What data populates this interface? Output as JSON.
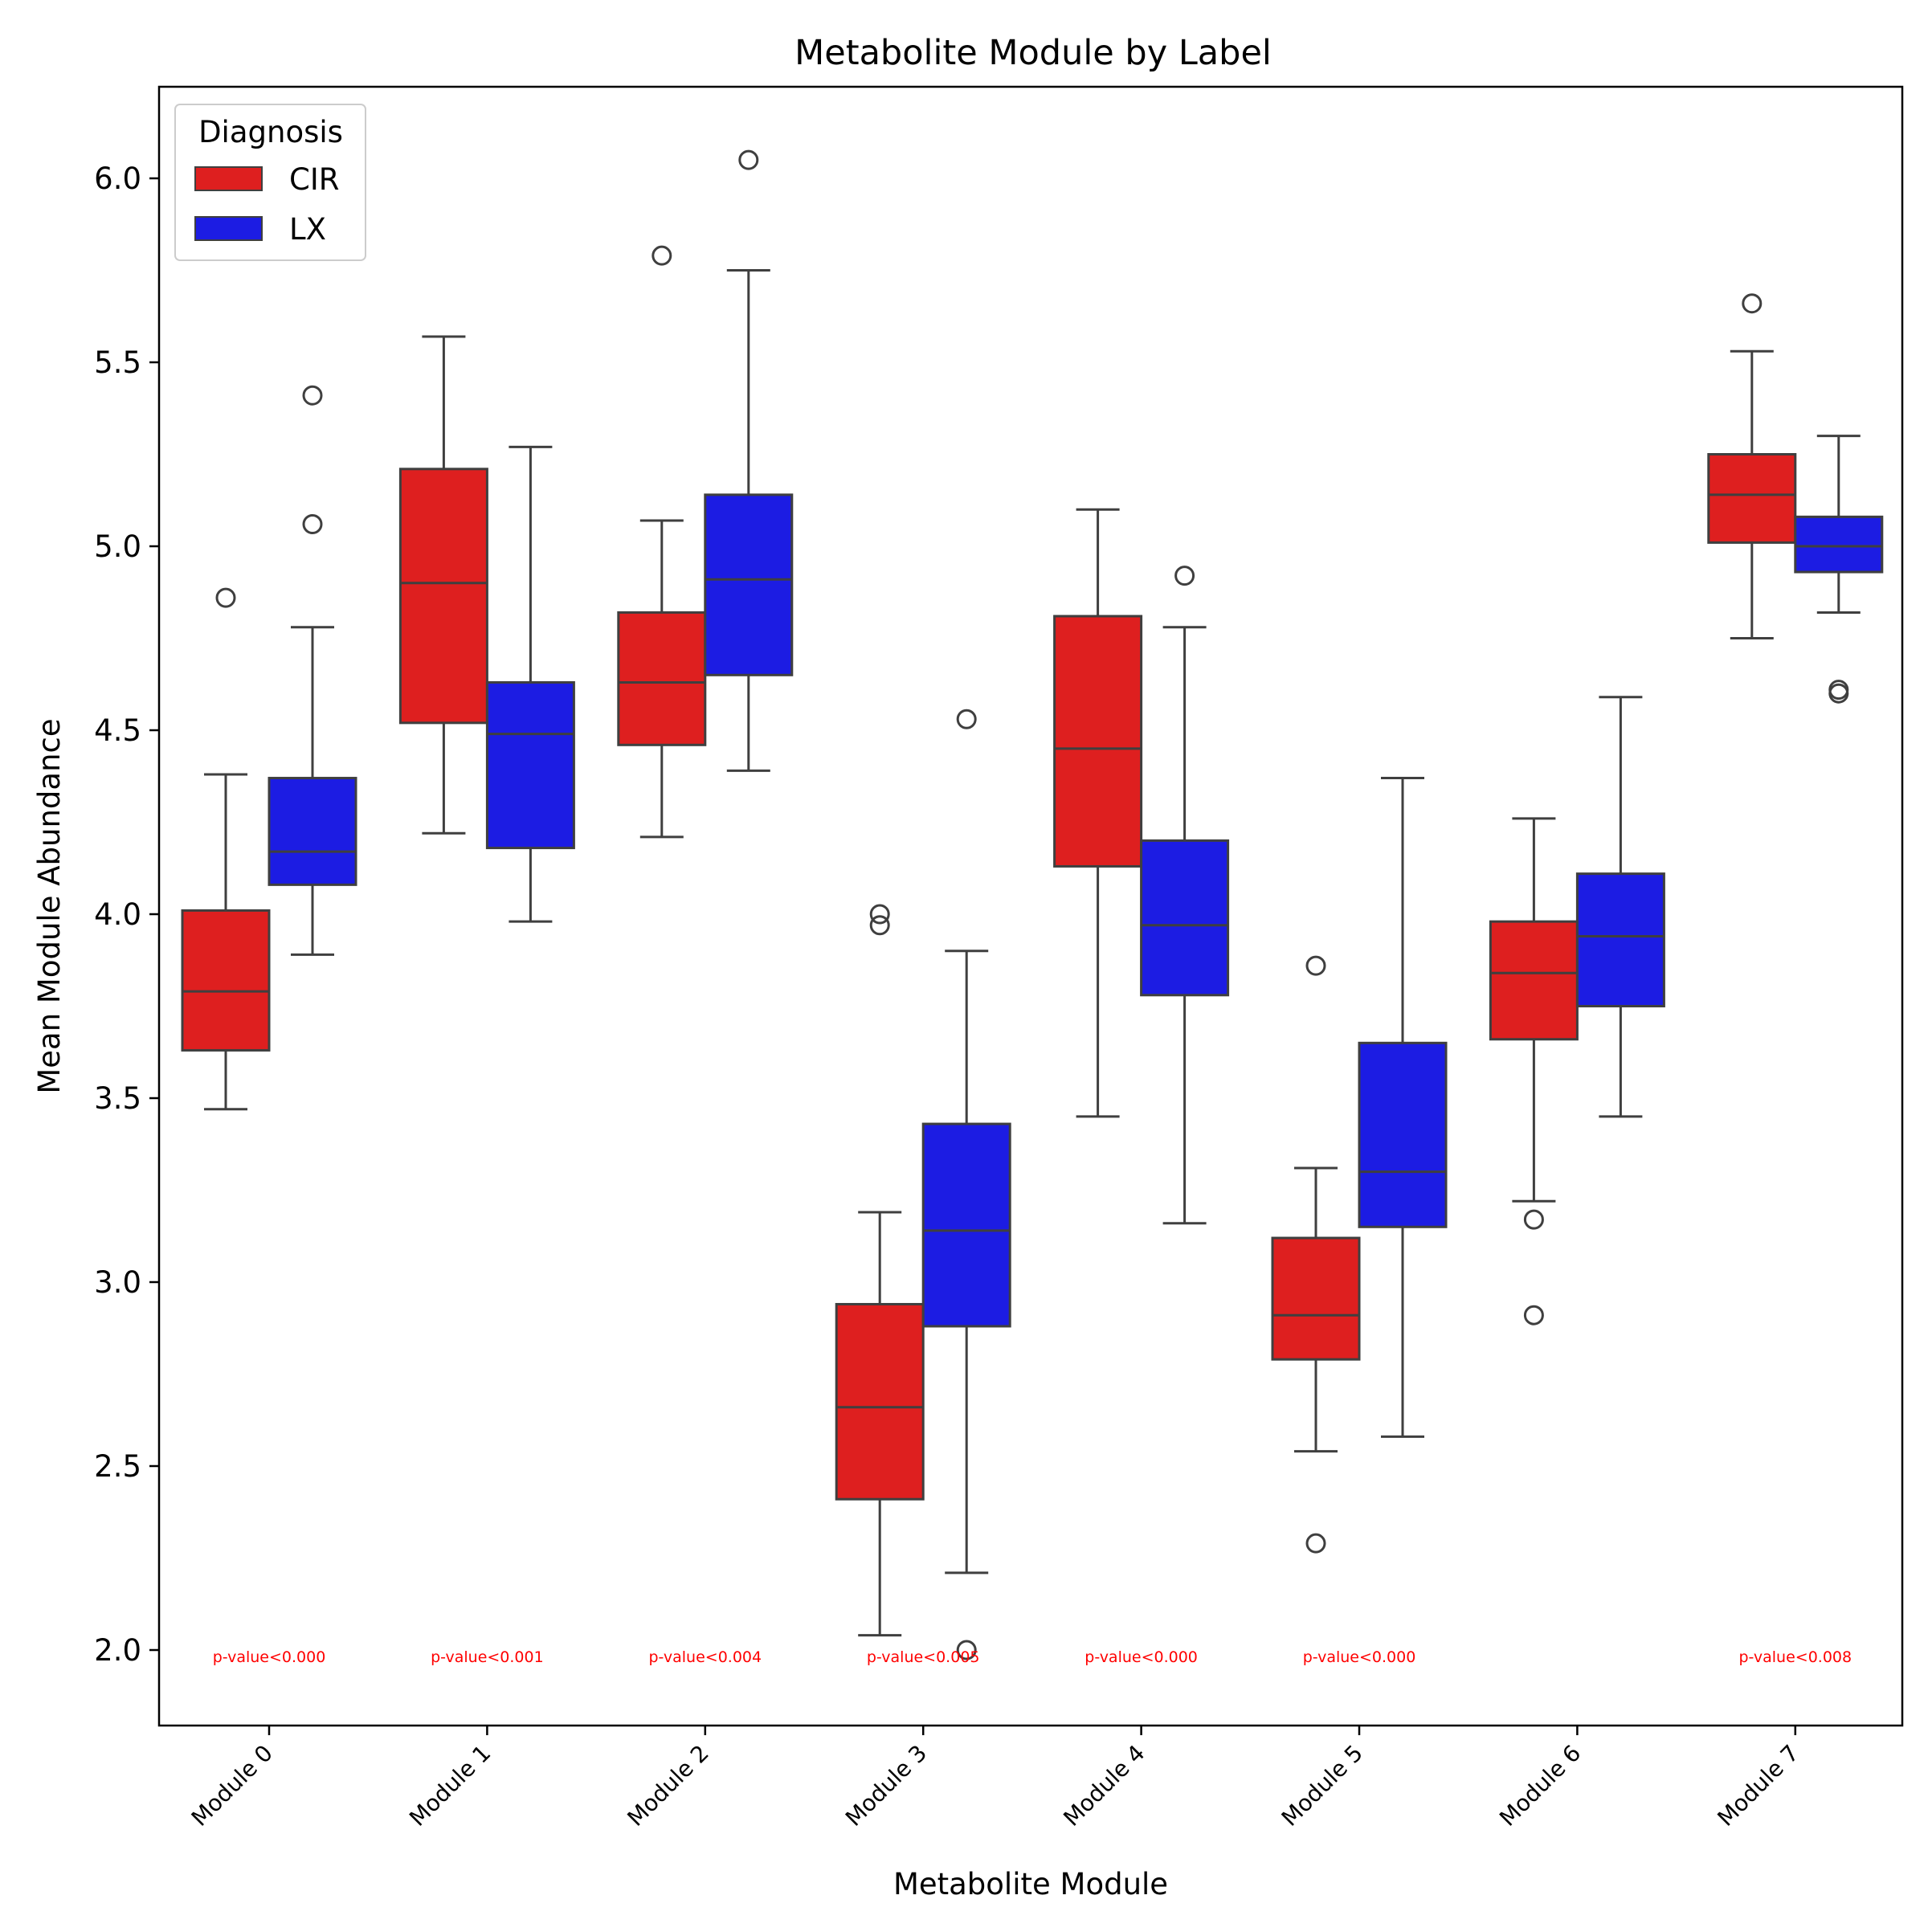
{
  "chart_data": {
    "type": "boxplot",
    "title": "Metabolite Module by Label",
    "xlabel": "Metabolite Module",
    "ylabel": "Mean Module Abundance",
    "ylim": [
      1.8,
      6.23
    ],
    "yticks": [
      2.0,
      2.5,
      3.0,
      3.5,
      4.0,
      4.5,
      5.0,
      5.5,
      6.0
    ],
    "ytick_labels": [
      "2.0",
      "2.5",
      "3.0",
      "3.5",
      "4.0",
      "4.5",
      "5.0",
      "5.5",
      "6.0"
    ],
    "categories": [
      "Module 0",
      "Module 1",
      "Module 2",
      "Module 3",
      "Module 4",
      "Module 5",
      "Module 6",
      "Module 7"
    ],
    "grid": false,
    "legend": {
      "title": "Diagnosis",
      "placement": "upper-left",
      "entries": [
        {
          "label": "CIR",
          "color": "#de1f1f"
        },
        {
          "label": "LX",
          "color": "#1c1ce3"
        }
      ]
    },
    "series": [
      {
        "name": "CIR",
        "color": "#de1f1f",
        "boxes": [
          {
            "whislo": 3.47,
            "q1": 3.63,
            "med": 3.79,
            "q3": 4.01,
            "whishi": 4.38,
            "fliers": [
              4.86
            ]
          },
          {
            "whislo": 4.22,
            "q1": 4.52,
            "med": 4.9,
            "q3": 5.21,
            "whishi": 5.57,
            "fliers": []
          },
          {
            "whislo": 4.21,
            "q1": 4.46,
            "med": 4.63,
            "q3": 4.82,
            "whishi": 5.07,
            "fliers": [
              5.79
            ]
          },
          {
            "whislo": 2.04,
            "q1": 2.41,
            "med": 2.66,
            "q3": 2.94,
            "whishi": 3.19,
            "fliers": [
              4.0,
              3.97
            ]
          },
          {
            "whislo": 3.45,
            "q1": 4.13,
            "med": 4.45,
            "q3": 4.81,
            "whishi": 5.1,
            "fliers": []
          },
          {
            "whislo": 2.54,
            "q1": 2.79,
            "med": 2.91,
            "q3": 3.12,
            "whishi": 3.31,
            "fliers": [
              3.86,
              2.29
            ]
          },
          {
            "whislo": 3.22,
            "q1": 3.66,
            "med": 3.84,
            "q3": 3.98,
            "whishi": 4.26,
            "fliers": [
              3.17,
              2.91
            ]
          },
          {
            "whislo": 4.75,
            "q1": 5.01,
            "med": 5.14,
            "q3": 5.25,
            "whishi": 5.53,
            "fliers": [
              5.66
            ]
          }
        ]
      },
      {
        "name": "LX",
        "color": "#1c1ce3",
        "boxes": [
          {
            "whislo": 3.89,
            "q1": 4.08,
            "med": 4.17,
            "q3": 4.37,
            "whishi": 4.78,
            "fliers": [
              5.41,
              5.06
            ]
          },
          {
            "whislo": 3.98,
            "q1": 4.18,
            "med": 4.49,
            "q3": 4.63,
            "whishi": 5.27,
            "fliers": []
          },
          {
            "whislo": 4.39,
            "q1": 4.65,
            "med": 4.91,
            "q3": 5.14,
            "whishi": 5.75,
            "fliers": [
              6.05
            ]
          },
          {
            "whislo": 2.21,
            "q1": 2.88,
            "med": 3.14,
            "q3": 3.43,
            "whishi": 3.9,
            "fliers": [
              4.53,
              2.0
            ]
          },
          {
            "whislo": 3.16,
            "q1": 3.78,
            "med": 3.97,
            "q3": 4.2,
            "whishi": 4.78,
            "fliers": [
              4.92
            ]
          },
          {
            "whislo": 2.58,
            "q1": 3.15,
            "med": 3.3,
            "q3": 3.65,
            "whishi": 4.37,
            "fliers": []
          },
          {
            "whislo": 3.45,
            "q1": 3.75,
            "med": 3.94,
            "q3": 4.11,
            "whishi": 4.59,
            "fliers": []
          },
          {
            "whislo": 4.82,
            "q1": 4.93,
            "med": 5.0,
            "q3": 5.08,
            "whishi": 5.3,
            "fliers": [
              4.61,
              4.6
            ]
          }
        ]
      }
    ],
    "annotations": [
      {
        "category": "Module 0",
        "text": "p-value<0.000"
      },
      {
        "category": "Module 1",
        "text": "p-value<0.001"
      },
      {
        "category": "Module 2",
        "text": "p-value<0.004"
      },
      {
        "category": "Module 3",
        "text": "p-value<0.005"
      },
      {
        "category": "Module 4",
        "text": "p-value<0.000"
      },
      {
        "category": "Module 5",
        "text": "p-value<0.000"
      },
      {
        "category": "Module 7",
        "text": "p-value<0.008"
      }
    ],
    "annotation_y": 1.98,
    "annotation_color": "#ff0000"
  }
}
